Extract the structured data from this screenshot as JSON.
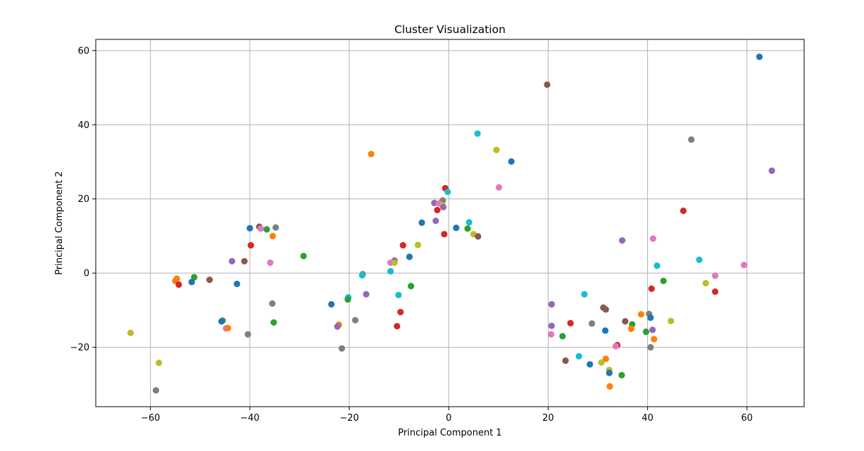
{
  "chart_data": {
    "type": "scatter",
    "title": "Cluster Visualization",
    "xlabel": "Principal Component 1",
    "ylabel": "Principal Component 2",
    "xlim": [
      -71,
      71.5
    ],
    "ylim": [
      -36,
      63
    ],
    "xticks": [
      -60,
      -40,
      -20,
      0,
      20,
      40,
      60
    ],
    "yticks": [
      -20,
      0,
      20,
      40,
      60
    ],
    "grid": true,
    "points": [
      {
        "x": 62.5,
        "y": 58.3,
        "color": "#1f77b4"
      },
      {
        "x": 19.8,
        "y": 50.8,
        "color": "#8c564b"
      },
      {
        "x": 48.8,
        "y": 36.0,
        "color": "#7f7f7f"
      },
      {
        "x": 65.0,
        "y": 27.6,
        "color": "#9467bd"
      },
      {
        "x": 5.8,
        "y": 37.6,
        "color": "#17becf"
      },
      {
        "x": 9.6,
        "y": 33.2,
        "color": "#bcbd22"
      },
      {
        "x": -15.6,
        "y": 32.1,
        "color": "#ff7f0e"
      },
      {
        "x": 12.6,
        "y": 30.1,
        "color": "#1f77b4"
      },
      {
        "x": 10.1,
        "y": 23.1,
        "color": "#e377c2"
      },
      {
        "x": -0.7,
        "y": 22.9,
        "color": "#d62728"
      },
      {
        "x": -0.2,
        "y": 21.9,
        "color": "#17becf"
      },
      {
        "x": -1.2,
        "y": 19.6,
        "color": "#7f7f7f"
      },
      {
        "x": -2.9,
        "y": 18.9,
        "color": "#9467bd"
      },
      {
        "x": -2.0,
        "y": 18.8,
        "color": "#e377c2"
      },
      {
        "x": -1.2,
        "y": 18.3,
        "color": "#bcbd22"
      },
      {
        "x": -1.1,
        "y": 17.8,
        "color": "#9467bd"
      },
      {
        "x": -2.3,
        "y": 17.0,
        "color": "#d62728"
      },
      {
        "x": 47.2,
        "y": 16.8,
        "color": "#d62728"
      },
      {
        "x": -2.6,
        "y": 14.1,
        "color": "#9467bd"
      },
      {
        "x": -5.4,
        "y": 13.6,
        "color": "#1f77b4"
      },
      {
        "x": 4.1,
        "y": 13.7,
        "color": "#17becf"
      },
      {
        "x": 1.5,
        "y": 12.2,
        "color": "#1f77b4"
      },
      {
        "x": 3.8,
        "y": 12.0,
        "color": "#2ca02c"
      },
      {
        "x": -0.9,
        "y": 10.5,
        "color": "#d62728"
      },
      {
        "x": 5.0,
        "y": 10.5,
        "color": "#bcbd22"
      },
      {
        "x": 5.9,
        "y": 9.9,
        "color": "#8c564b"
      },
      {
        "x": -40.0,
        "y": 12.1,
        "color": "#1f77b4"
      },
      {
        "x": -38.1,
        "y": 12.5,
        "color": "#8c564b"
      },
      {
        "x": -37.8,
        "y": 12.0,
        "color": "#e377c2"
      },
      {
        "x": -36.6,
        "y": 11.8,
        "color": "#2ca02c"
      },
      {
        "x": -34.8,
        "y": 12.3,
        "color": "#7f7f7f"
      },
      {
        "x": -35.4,
        "y": 10.0,
        "color": "#ff7f0e"
      },
      {
        "x": -39.8,
        "y": 7.5,
        "color": "#d62728"
      },
      {
        "x": -29.2,
        "y": 4.6,
        "color": "#2ca02c"
      },
      {
        "x": -43.6,
        "y": 3.2,
        "color": "#9467bd"
      },
      {
        "x": -41.1,
        "y": 3.2,
        "color": "#8c564b"
      },
      {
        "x": -35.9,
        "y": 2.8,
        "color": "#e377c2"
      },
      {
        "x": -51.2,
        "y": -1.1,
        "color": "#2ca02c"
      },
      {
        "x": -54.7,
        "y": -1.5,
        "color": "#ff7f0e"
      },
      {
        "x": -55.0,
        "y": -2.1,
        "color": "#ff7f0e"
      },
      {
        "x": -54.3,
        "y": -3.1,
        "color": "#d62728"
      },
      {
        "x": -51.7,
        "y": -2.4,
        "color": "#1f77b4"
      },
      {
        "x": -48.1,
        "y": -1.8,
        "color": "#8c564b"
      },
      {
        "x": -42.6,
        "y": -2.9,
        "color": "#1f77b4"
      },
      {
        "x": -35.5,
        "y": -8.2,
        "color": "#7f7f7f"
      },
      {
        "x": -45.5,
        "y": -12.8,
        "color": "#2ca02c"
      },
      {
        "x": -45.7,
        "y": -13.0,
        "color": "#1f77b4"
      },
      {
        "x": -44.8,
        "y": -14.9,
        "color": "#e377c2"
      },
      {
        "x": -44.4,
        "y": -14.8,
        "color": "#ff7f0e"
      },
      {
        "x": -35.2,
        "y": -13.3,
        "color": "#2ca02c"
      },
      {
        "x": -40.4,
        "y": -16.5,
        "color": "#7f7f7f"
      },
      {
        "x": -64.0,
        "y": -16.1,
        "color": "#bcbd22"
      },
      {
        "x": -58.3,
        "y": -24.2,
        "color": "#bcbd22"
      },
      {
        "x": -58.9,
        "y": -31.6,
        "color": "#7f7f7f"
      },
      {
        "x": -9.2,
        "y": 7.5,
        "color": "#d62728"
      },
      {
        "x": -6.2,
        "y": 7.6,
        "color": "#bcbd22"
      },
      {
        "x": -7.9,
        "y": 4.4,
        "color": "#1f77b4"
      },
      {
        "x": -10.9,
        "y": 3.4,
        "color": "#9467bd"
      },
      {
        "x": -11.7,
        "y": 2.8,
        "color": "#e377c2"
      },
      {
        "x": -10.9,
        "y": 2.8,
        "color": "#bcbd22"
      },
      {
        "x": -11.7,
        "y": 0.5,
        "color": "#17becf"
      },
      {
        "x": -17.3,
        "y": -0.3,
        "color": "#7f7f7f"
      },
      {
        "x": -17.4,
        "y": -0.6,
        "color": "#17becf"
      },
      {
        "x": -7.6,
        "y": -3.5,
        "color": "#2ca02c"
      },
      {
        "x": -16.6,
        "y": -5.7,
        "color": "#9467bd"
      },
      {
        "x": -10.1,
        "y": -5.9,
        "color": "#17becf"
      },
      {
        "x": -20.2,
        "y": -6.5,
        "color": "#17becf"
      },
      {
        "x": -20.3,
        "y": -7.1,
        "color": "#2ca02c"
      },
      {
        "x": -23.6,
        "y": -8.4,
        "color": "#1f77b4"
      },
      {
        "x": -9.7,
        "y": -10.5,
        "color": "#d62728"
      },
      {
        "x": -18.8,
        "y": -12.7,
        "color": "#7f7f7f"
      },
      {
        "x": -22.1,
        "y": -13.9,
        "color": "#ff7f0e"
      },
      {
        "x": -22.4,
        "y": -14.4,
        "color": "#9467bd"
      },
      {
        "x": -10.4,
        "y": -14.3,
        "color": "#d62728"
      },
      {
        "x": -21.5,
        "y": -20.3,
        "color": "#7f7f7f"
      },
      {
        "x": 34.9,
        "y": 8.8,
        "color": "#9467bd"
      },
      {
        "x": 41.1,
        "y": 9.3,
        "color": "#e377c2"
      },
      {
        "x": 50.4,
        "y": 3.6,
        "color": "#17becf"
      },
      {
        "x": 41.9,
        "y": 2.0,
        "color": "#17becf"
      },
      {
        "x": 59.4,
        "y": 2.2,
        "color": "#e377c2"
      },
      {
        "x": 53.6,
        "y": -0.7,
        "color": "#e377c2"
      },
      {
        "x": 43.2,
        "y": -2.1,
        "color": "#2ca02c"
      },
      {
        "x": 51.7,
        "y": -2.7,
        "color": "#bcbd22"
      },
      {
        "x": 40.8,
        "y": -4.2,
        "color": "#d62728"
      },
      {
        "x": 53.6,
        "y": -5.0,
        "color": "#d62728"
      },
      {
        "x": 27.3,
        "y": -5.7,
        "color": "#17becf"
      },
      {
        "x": 20.7,
        "y": -8.4,
        "color": "#9467bd"
      },
      {
        "x": 31.1,
        "y": -9.3,
        "color": "#8c564b"
      },
      {
        "x": 31.6,
        "y": -9.8,
        "color": "#8c564b"
      },
      {
        "x": 38.7,
        "y": -11.1,
        "color": "#ff7f0e"
      },
      {
        "x": 40.3,
        "y": -11.0,
        "color": "#7f7f7f"
      },
      {
        "x": 40.6,
        "y": -12.0,
        "color": "#1f77b4"
      },
      {
        "x": 35.5,
        "y": -13.0,
        "color": "#8c564b"
      },
      {
        "x": 44.7,
        "y": -12.9,
        "color": "#bcbd22"
      },
      {
        "x": 24.5,
        "y": -13.5,
        "color": "#d62728"
      },
      {
        "x": 28.8,
        "y": -13.6,
        "color": "#7f7f7f"
      },
      {
        "x": 36.9,
        "y": -13.8,
        "color": "#2ca02c"
      },
      {
        "x": 20.7,
        "y": -14.2,
        "color": "#9467bd"
      },
      {
        "x": 36.7,
        "y": -15.0,
        "color": "#ff7f0e"
      },
      {
        "x": 41.0,
        "y": -15.3,
        "color": "#9467bd"
      },
      {
        "x": 31.5,
        "y": -15.5,
        "color": "#1f77b4"
      },
      {
        "x": 39.7,
        "y": -15.8,
        "color": "#2ca02c"
      },
      {
        "x": 20.6,
        "y": -16.5,
        "color": "#e377c2"
      },
      {
        "x": 22.9,
        "y": -17.0,
        "color": "#2ca02c"
      },
      {
        "x": 41.3,
        "y": -17.8,
        "color": "#ff7f0e"
      },
      {
        "x": 33.9,
        "y": -19.4,
        "color": "#d62728"
      },
      {
        "x": 33.6,
        "y": -19.7,
        "color": "#e377c2"
      },
      {
        "x": 40.6,
        "y": -20.0,
        "color": "#7f7f7f"
      },
      {
        "x": 26.2,
        "y": -22.4,
        "color": "#17becf"
      },
      {
        "x": 23.5,
        "y": -23.6,
        "color": "#8c564b"
      },
      {
        "x": 31.6,
        "y": -23.1,
        "color": "#ff7f0e"
      },
      {
        "x": 30.7,
        "y": -24.1,
        "color": "#bcbd22"
      },
      {
        "x": 28.4,
        "y": -24.6,
        "color": "#1f77b4"
      },
      {
        "x": 32.3,
        "y": -26.1,
        "color": "#bcbd22"
      },
      {
        "x": 32.3,
        "y": -26.9,
        "color": "#1f77b4"
      },
      {
        "x": 34.8,
        "y": -27.5,
        "color": "#2ca02c"
      },
      {
        "x": 32.4,
        "y": -30.5,
        "color": "#ff7f0e"
      }
    ]
  }
}
